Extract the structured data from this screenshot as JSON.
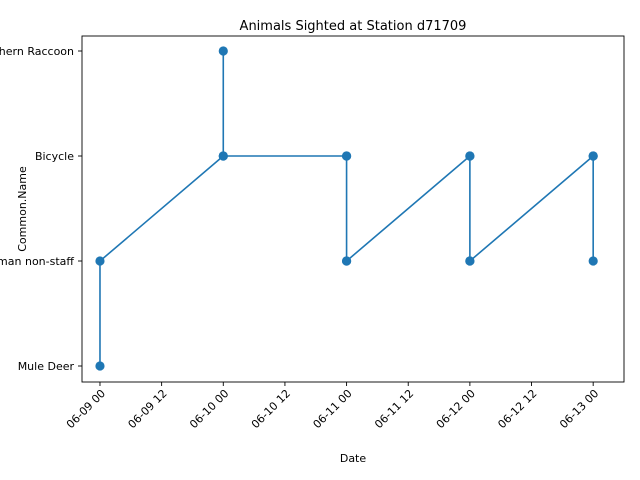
{
  "chart_data": {
    "type": "line",
    "title": "Animals Sighted at Station d71709",
    "xlabel": "Date",
    "ylabel": "Common.Name",
    "categories_y": [
      "Mule Deer",
      "Human non-staff",
      "Bicycle",
      "Northern Raccoon"
    ],
    "x_ticks": [
      "06-09 00",
      "06-09 12",
      "06-10 00",
      "06-10 12",
      "06-11 00",
      "06-11 12",
      "06-12 00",
      "06-12 12",
      "06-13 00"
    ],
    "x_tick_values": [
      "2021-06-09 00:00",
      "2021-06-09 12:00",
      "2021-06-10 00:00",
      "2021-06-10 12:00",
      "2021-06-11 00:00",
      "2021-06-11 12:00",
      "2021-06-12 00:00",
      "2021-06-12 12:00",
      "2021-06-13 00:00"
    ],
    "xlim": [
      "2021-06-08 20:30",
      "2021-06-13 06:00"
    ],
    "series": [
      {
        "color": "#1f77b4",
        "marker": "circle",
        "points": [
          {
            "x": "2021-06-09 00:00",
            "y": "Mule Deer"
          },
          {
            "x": "2021-06-09 00:00",
            "y": "Human non-staff"
          },
          {
            "x": "2021-06-10 00:00",
            "y": "Bicycle"
          },
          {
            "x": "2021-06-10 00:00",
            "y": "Northern Raccoon"
          },
          {
            "x": "2021-06-10 00:00",
            "y": "Bicycle"
          },
          {
            "x": "2021-06-11 00:00",
            "y": "Bicycle"
          },
          {
            "x": "2021-06-11 00:00",
            "y": "Human non-staff"
          },
          {
            "x": "2021-06-11 00:00",
            "y": "Bicycle"
          },
          {
            "x": "2021-06-11 00:00",
            "y": "Human non-staff"
          },
          {
            "x": "2021-06-12 00:00",
            "y": "Bicycle"
          },
          {
            "x": "2021-06-12 00:00",
            "y": "Human non-staff"
          },
          {
            "x": "2021-06-12 00:00",
            "y": "Bicycle"
          },
          {
            "x": "2021-06-12 00:00",
            "y": "Human non-staff"
          },
          {
            "x": "2021-06-13 00:00",
            "y": "Bicycle"
          },
          {
            "x": "2021-06-13 00:00",
            "y": "Human non-staff"
          },
          {
            "x": "2021-06-13 00:00",
            "y": "Bicycle"
          }
        ]
      }
    ],
    "grid": false,
    "legend": "none"
  }
}
